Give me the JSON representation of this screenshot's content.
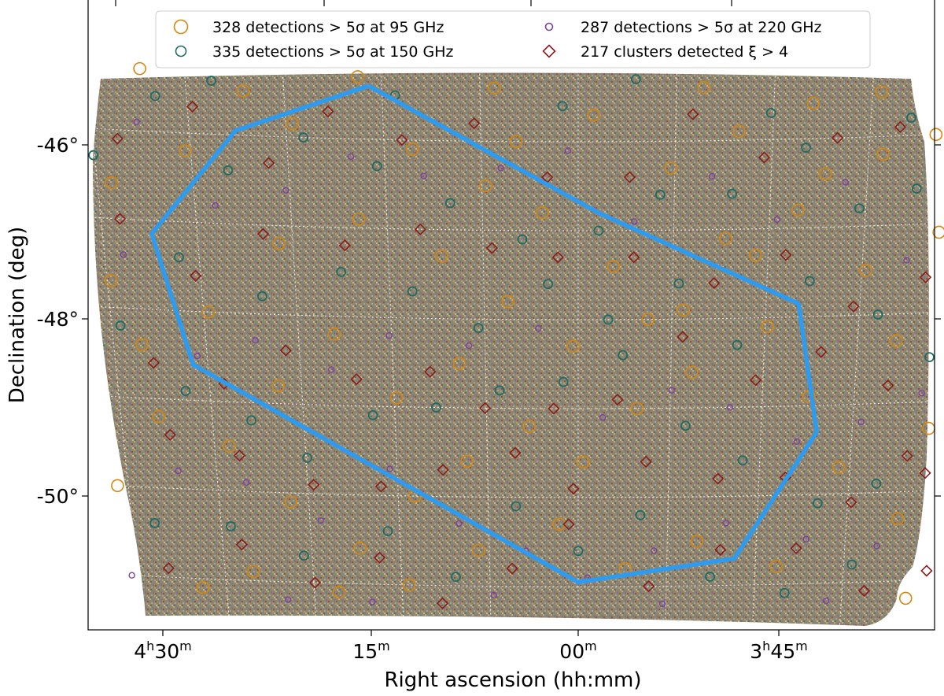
{
  "chart_data": {
    "type": "scatter",
    "xlabel": "Right ascension (hh:mm)",
    "ylabel": "Declination (deg)",
    "x_ticks": [
      {
        "ra_deg": 67.5,
        "h": "4",
        "m": "30"
      },
      {
        "ra_deg": 63.75,
        "h": "",
        "m": "15"
      },
      {
        "ra_deg": 60.0,
        "h": "",
        "m": "00"
      },
      {
        "ra_deg": 56.25,
        "h": "3",
        "m": "45"
      }
    ],
    "y_ticks": [
      {
        "dec_deg": -46,
        "label": "-46°"
      },
      {
        "dec_deg": -48,
        "label": "-48°"
      },
      {
        "dec_deg": -50,
        "label": "-50°"
      }
    ],
    "x_range_ra_deg": [
      70.0,
      52.4
    ],
    "y_range_dec_deg": [
      -51.5,
      -45.0
    ],
    "grid": true,
    "legend_placement": "top-center",
    "legend": [
      {
        "marker": "circle-large",
        "text": "328 detections  > 5σ at 95 GHz",
        "color": "#d4870f",
        "count": 328
      },
      {
        "marker": "circle-medium",
        "text": "335 detections  > 5σ at 150 GHz",
        "color": "#1f6b63",
        "count": 335
      },
      {
        "marker": "circle-small",
        "text": "287 detections  > 5σ at 220 GHz",
        "color": "#7d3fa3",
        "count": 287
      },
      {
        "marker": "diamond",
        "text": "217 clusters detected ξ > 4",
        "color": "#8b1a1a",
        "count": 217
      }
    ],
    "outline": {
      "color": "#2d9cf0",
      "vertices_ra_dec": [
        [
          64.0,
          -45.4
        ],
        [
          66.6,
          -45.95
        ],
        [
          68.4,
          -47.15
        ],
        [
          67.8,
          -48.6
        ],
        [
          60.0,
          -50.95
        ],
        [
          56.7,
          -50.7
        ],
        [
          55.1,
          -49.3
        ],
        [
          55.6,
          -47.85
        ],
        [
          59.6,
          -46.8
        ],
        [
          64.0,
          -45.4
        ]
      ]
    },
    "detections_95ghz": [
      [
        68.35,
        -45.3
      ],
      [
        65.5,
        -45.85
      ],
      [
        63.2,
        -46.1
      ],
      [
        61.8,
        -46.5
      ],
      [
        60.7,
        -46.8
      ],
      [
        59.3,
        -47.4
      ],
      [
        57.9,
        -47.9
      ],
      [
        56.5,
        -47.3
      ],
      [
        55.2,
        -46.4
      ],
      [
        54.1,
        -46.2
      ],
      [
        53.1,
        -46.0
      ],
      [
        69.3,
        -47.7
      ],
      [
        68.8,
        -48.4
      ],
      [
        67.2,
        -49.5
      ],
      [
        66.0,
        -50.1
      ],
      [
        64.6,
        -50.6
      ],
      [
        63.4,
        -50.0
      ],
      [
        62.3,
        -49.6
      ],
      [
        61.0,
        -49.2
      ],
      [
        59.9,
        -49.6
      ],
      [
        58.8,
        -49.0
      ],
      [
        57.7,
        -48.6
      ],
      [
        56.2,
        -48.1
      ],
      [
        55.3,
        -48.9
      ],
      [
        54.6,
        -49.7
      ],
      [
        53.3,
        -50.3
      ],
      [
        68.0,
        -51.1
      ],
      [
        66.9,
        -50.9
      ],
      [
        65.1,
        -51.1
      ],
      [
        63.6,
        -51.0
      ],
      [
        62.1,
        -50.6
      ],
      [
        60.4,
        -50.3
      ],
      [
        59.0,
        -50.8
      ],
      [
        57.5,
        -50.5
      ],
      [
        55.8,
        -50.8
      ],
      [
        53.0,
        -51.2
      ],
      [
        69.1,
        -46.6
      ],
      [
        67.6,
        -46.2
      ],
      [
        65.9,
        -47.2
      ],
      [
        64.3,
        -46.9
      ],
      [
        62.7,
        -47.3
      ],
      [
        61.4,
        -47.8
      ],
      [
        60.1,
        -48.3
      ],
      [
        58.6,
        -48.0
      ],
      [
        57.1,
        -47.1
      ],
      [
        55.7,
        -46.8
      ],
      [
        54.3,
        -47.5
      ],
      [
        53.6,
        -48.3
      ],
      [
        68.6,
        -49.2
      ],
      [
        67.4,
        -48.0
      ],
      [
        66.1,
        -48.8
      ],
      [
        64.9,
        -48.2
      ],
      [
        63.7,
        -48.9
      ],
      [
        62.4,
        -48.5
      ],
      [
        61.2,
        -46.0
      ],
      [
        59.7,
        -45.7
      ],
      [
        58.2,
        -46.3
      ],
      [
        56.9,
        -45.9
      ],
      [
        55.5,
        -45.6
      ],
      [
        54.2,
        -45.5
      ],
      [
        52.9,
        -47.1
      ],
      [
        52.8,
        -49.3
      ],
      [
        69.6,
        -50.0
      ],
      [
        66.4,
        -45.5
      ],
      [
        64.2,
        -45.3
      ],
      [
        61.6,
        -45.4
      ],
      [
        57.6,
        -45.4
      ]
    ],
    "detections_150ghz": [
      [
        68.1,
        -45.6
      ],
      [
        66.8,
        -46.4
      ],
      [
        65.3,
        -46.0
      ],
      [
        63.9,
        -46.3
      ],
      [
        62.5,
        -46.7
      ],
      [
        61.1,
        -47.1
      ],
      [
        59.6,
        -47.0
      ],
      [
        58.4,
        -46.6
      ],
      [
        57.0,
        -46.6
      ],
      [
        55.6,
        -46.1
      ],
      [
        54.5,
        -46.8
      ],
      [
        53.4,
        -46.6
      ],
      [
        69.2,
        -48.2
      ],
      [
        68.0,
        -48.9
      ],
      [
        66.7,
        -49.2
      ],
      [
        65.6,
        -49.6
      ],
      [
        64.2,
        -49.1
      ],
      [
        62.9,
        -49.0
      ],
      [
        61.6,
        -48.8
      ],
      [
        60.3,
        -48.7
      ],
      [
        59.1,
        -48.4
      ],
      [
        57.8,
        -49.2
      ],
      [
        56.6,
        -49.6
      ],
      [
        55.0,
        -50.1
      ],
      [
        53.8,
        -49.9
      ],
      [
        68.9,
        -50.4
      ],
      [
        67.3,
        -50.4
      ],
      [
        65.8,
        -50.7
      ],
      [
        64.0,
        -50.4
      ],
      [
        62.6,
        -50.9
      ],
      [
        61.3,
        -50.1
      ],
      [
        60.0,
        -50.6
      ],
      [
        58.7,
        -50.2
      ],
      [
        57.2,
        -50.9
      ],
      [
        55.6,
        -51.1
      ],
      [
        54.2,
        -50.8
      ],
      [
        69.4,
        -46.3
      ],
      [
        67.9,
        -47.4
      ],
      [
        66.3,
        -47.8
      ],
      [
        64.7,
        -47.5
      ],
      [
        63.3,
        -47.7
      ],
      [
        62.0,
        -48.1
      ],
      [
        60.6,
        -47.6
      ],
      [
        59.4,
        -48.0
      ],
      [
        58.0,
        -47.6
      ],
      [
        56.8,
        -48.3
      ],
      [
        55.4,
        -47.6
      ],
      [
        54.0,
        -48.0
      ],
      [
        52.9,
        -48.5
      ],
      [
        67.0,
        -45.4
      ],
      [
        63.5,
        -45.5
      ],
      [
        60.3,
        -45.6
      ],
      [
        58.9,
        -45.3
      ],
      [
        56.3,
        -45.7
      ],
      [
        53.6,
        -45.8
      ]
    ],
    "detections_220ghz": [
      [
        68.5,
        -45.9
      ],
      [
        67.1,
        -46.8
      ],
      [
        65.7,
        -46.6
      ],
      [
        64.4,
        -46.2
      ],
      [
        63.0,
        -46.4
      ],
      [
        61.5,
        -46.3
      ],
      [
        60.2,
        -46.1
      ],
      [
        58.9,
        -46.9
      ],
      [
        57.4,
        -46.4
      ],
      [
        56.1,
        -46.9
      ],
      [
        54.8,
        -46.5
      ],
      [
        53.5,
        -47.4
      ],
      [
        69.0,
        -47.4
      ],
      [
        67.7,
        -48.5
      ],
      [
        66.5,
        -48.3
      ],
      [
        65.0,
        -48.6
      ],
      [
        63.8,
        -48.2
      ],
      [
        62.2,
        -48.3
      ],
      [
        60.8,
        -48.1
      ],
      [
        59.5,
        -49.1
      ],
      [
        58.1,
        -48.8
      ],
      [
        56.9,
        -49.0
      ],
      [
        55.5,
        -49.4
      ],
      [
        54.2,
        -49.2
      ],
      [
        53.0,
        -48.9
      ],
      [
        68.3,
        -49.8
      ],
      [
        66.9,
        -49.9
      ],
      [
        65.4,
        -50.3
      ],
      [
        63.9,
        -49.7
      ],
      [
        62.5,
        -50.3
      ],
      [
        61.1,
        -50.6
      ],
      [
        59.8,
        -50.9
      ],
      [
        58.4,
        -50.6
      ],
      [
        56.9,
        -50.3
      ],
      [
        55.2,
        -50.5
      ],
      [
        53.7,
        -50.6
      ],
      [
        69.5,
        -51.0
      ],
      [
        66.2,
        -51.2
      ],
      [
        64.4,
        -51.2
      ],
      [
        61.8,
        -51.1
      ],
      [
        58.2,
        -51.2
      ],
      [
        54.7,
        -51.2
      ]
    ],
    "clusters": [
      [
        68.9,
        -46.1
      ],
      [
        67.4,
        -45.7
      ],
      [
        66.0,
        -46.3
      ],
      [
        64.8,
        -45.7
      ],
      [
        63.4,
        -46.0
      ],
      [
        62.0,
        -45.8
      ],
      [
        60.6,
        -46.4
      ],
      [
        59.0,
        -46.4
      ],
      [
        57.8,
        -45.7
      ],
      [
        56.4,
        -46.2
      ],
      [
        55.0,
        -46.0
      ],
      [
        53.8,
        -45.9
      ],
      [
        52.7,
        -46.3
      ],
      [
        69.0,
        -47.0
      ],
      [
        67.6,
        -47.6
      ],
      [
        66.2,
        -47.1
      ],
      [
        64.6,
        -47.2
      ],
      [
        63.1,
        -47.0
      ],
      [
        61.7,
        -47.2
      ],
      [
        60.4,
        -47.3
      ],
      [
        58.9,
        -47.3
      ],
      [
        57.3,
        -47.6
      ],
      [
        55.9,
        -47.3
      ],
      [
        54.5,
        -47.9
      ],
      [
        53.1,
        -47.6
      ],
      [
        68.6,
        -48.6
      ],
      [
        67.2,
        -48.8
      ],
      [
        65.9,
        -48.4
      ],
      [
        64.5,
        -48.7
      ],
      [
        63.0,
        -48.6
      ],
      [
        61.9,
        -49.0
      ],
      [
        60.5,
        -49.0
      ],
      [
        59.2,
        -48.9
      ],
      [
        57.9,
        -48.2
      ],
      [
        56.4,
        -48.7
      ],
      [
        55.1,
        -48.4
      ],
      [
        53.7,
        -48.8
      ],
      [
        52.8,
        -49.8
      ],
      [
        68.4,
        -49.4
      ],
      [
        67.0,
        -49.6
      ],
      [
        65.5,
        -49.9
      ],
      [
        64.1,
        -49.9
      ],
      [
        62.8,
        -49.7
      ],
      [
        61.3,
        -49.5
      ],
      [
        60.1,
        -49.9
      ],
      [
        58.6,
        -49.6
      ],
      [
        57.1,
        -49.8
      ],
      [
        55.7,
        -49.8
      ],
      [
        54.3,
        -50.1
      ],
      [
        53.2,
        -49.6
      ],
      [
        68.7,
        -50.9
      ],
      [
        67.1,
        -50.6
      ],
      [
        65.6,
        -51.0
      ],
      [
        64.2,
        -50.7
      ],
      [
        62.9,
        -51.2
      ],
      [
        61.4,
        -50.8
      ],
      [
        60.2,
        -50.3
      ],
      [
        58.5,
        -51.0
      ],
      [
        57.0,
        -50.6
      ],
      [
        55.4,
        -50.6
      ],
      [
        53.9,
        -51.1
      ],
      [
        52.6,
        -50.9
      ]
    ]
  }
}
